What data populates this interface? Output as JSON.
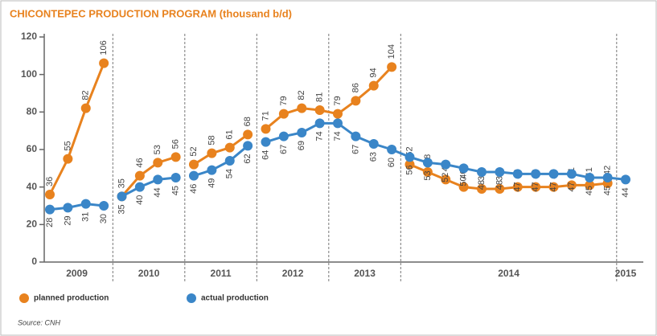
{
  "chart_data": {
    "type": "line",
    "title": "CHICONTEPEC PRODUCTION PROGRAM (thousand b/d)",
    "source": "Source: CNH",
    "categories": [
      null,
      null,
      null,
      null,
      null,
      null,
      null,
      null,
      null,
      null,
      null,
      null,
      null,
      null,
      null,
      null,
      null,
      null,
      null,
      null,
      null,
      null,
      null,
      null,
      null,
      null,
      null,
      null,
      null,
      null,
      null,
      null,
      null
    ],
    "groups": [
      {
        "label": "2009",
        "count": 4
      },
      {
        "label": "2010",
        "count": 4
      },
      {
        "label": "2011",
        "count": 4
      },
      {
        "label": "2012",
        "count": 4
      },
      {
        "label": "2013",
        "count": 4
      },
      {
        "label": "2014",
        "count": 12
      },
      {
        "label": "2015",
        "count": 1
      }
    ],
    "series": [
      {
        "name": "planned production",
        "color": "#e8821e",
        "label_side": "above",
        "join": [
          false,
          false,
          false,
          true,
          false,
          true
        ],
        "values": [
          36,
          55,
          82,
          106,
          35,
          46,
          53,
          56,
          52,
          58,
          61,
          68,
          71,
          79,
          82,
          81,
          79,
          86,
          94,
          104,
          52,
          48,
          44,
          40,
          39,
          39,
          40,
          40,
          40,
          41,
          41,
          42,
          null
        ]
      },
      {
        "name": "actual production",
        "color": "#3a86c8",
        "label_side": "below",
        "join": [
          false,
          false,
          false,
          true,
          true,
          true
        ],
        "values": [
          28,
          29,
          31,
          30,
          35,
          40,
          44,
          45,
          46,
          49,
          54,
          62,
          64,
          67,
          69,
          74,
          74,
          67,
          63,
          60,
          56,
          53,
          52,
          50,
          48,
          48,
          47,
          47,
          47,
          47,
          45,
          45,
          44
        ]
      }
    ],
    "ylim": [
      0,
      120
    ],
    "yticks": [
      0,
      20,
      40,
      60,
      80,
      100,
      120
    ]
  }
}
